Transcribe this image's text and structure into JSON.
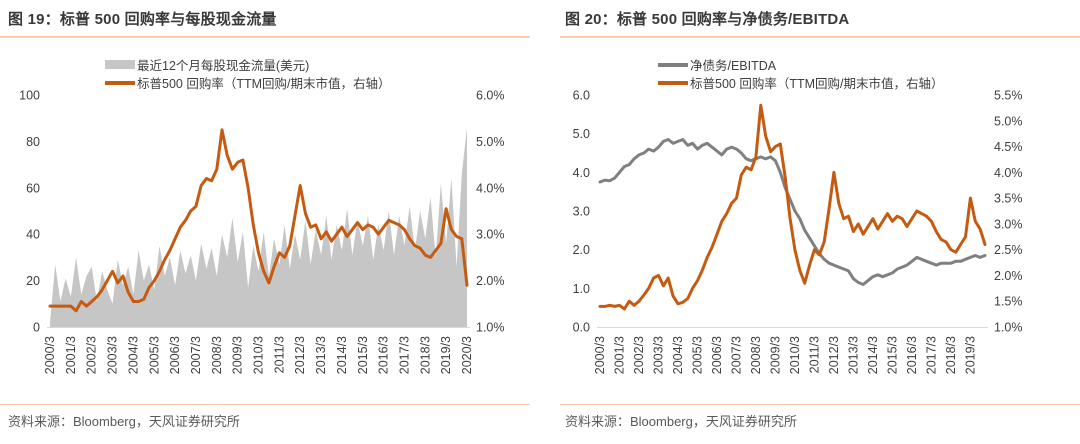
{
  "colors": {
    "accent_orange": "#C55A11",
    "area_gray": "#C6C6C6",
    "line_gray": "#808080",
    "rule_orange": "#F8CBAD",
    "title_text": "#3B3838",
    "tick_text": "#404040",
    "source_text": "#595959",
    "baseline": "#D9D9D9"
  },
  "panels": [
    {
      "title": "图 19：标普 500 回购率与每股现金流量",
      "source": "资料来源：Bloomberg，天风证券研究所",
      "legend": [
        {
          "type": "area",
          "label": "最近12个月每股现金流量(美元)",
          "color": "#C6C6C6"
        },
        {
          "type": "line",
          "label": "标普500 回购率（TTM回购/期末市值，右轴）",
          "color": "#C55A11"
        }
      ]
    },
    {
      "title": "图 20：标普 500 回购率与净债务/EBITDA",
      "source": "资料来源：Bloomberg，天风证券研究所",
      "legend": [
        {
          "type": "line",
          "label": "净债务/EBITDA",
          "color": "#808080"
        },
        {
          "type": "line",
          "label": "标普500 回购率（TTM回购/期末市值，右轴）",
          "color": "#C55A11"
        }
      ]
    }
  ],
  "chart_data": [
    {
      "type": "area",
      "subtype": "combo-area-line-dual-axis",
      "title": "图 19：标普 500 回购率与每股现金流量",
      "x_frequency": "quarterly",
      "x_start": "2000Q1",
      "x_end": "2020Q1",
      "grid": false,
      "legend_position": "top",
      "x_tick_labels": [
        "2000/3",
        "2001/3",
        "2002/3",
        "2003/3",
        "2004/3",
        "2005/3",
        "2006/3",
        "2007/3",
        "2008/3",
        "2009/3",
        "2010/3",
        "2011/3",
        "2012/3",
        "2013/3",
        "2014/3",
        "2015/3",
        "2016/3",
        "2017/3",
        "2018/3",
        "2019/3",
        "2020/3"
      ],
      "left_axis": {
        "range": [
          0,
          100
        ],
        "ticks": [
          0,
          20,
          40,
          60,
          80,
          100
        ],
        "tick_labels": [
          "0",
          "20",
          "40",
          "60",
          "80",
          "100"
        ]
      },
      "right_axis": {
        "range": [
          1.0,
          6.0
        ],
        "ticks": [
          1,
          2,
          3,
          4,
          5,
          6
        ],
        "tick_labels": [
          "1.0%",
          "2.0%",
          "3.0%",
          "4.0%",
          "5.0%",
          "6.0%"
        ]
      },
      "series": [
        {
          "name": "最近12个月每股现金流量(美元)",
          "type": "area",
          "axis": "left",
          "color": "#C6C6C6",
          "values": [
            2,
            27,
            11,
            21,
            13,
            30,
            14,
            22,
            26,
            11,
            24,
            16,
            10,
            29,
            18,
            26,
            14,
            33,
            20,
            27,
            16,
            35,
            22,
            30,
            18,
            33,
            23,
            31,
            20,
            36,
            25,
            34,
            22,
            40,
            30,
            47,
            28,
            41,
            17,
            35,
            24,
            41,
            22,
            38,
            27,
            44,
            25,
            40,
            29,
            46,
            27,
            42,
            31,
            48,
            29,
            44,
            33,
            51,
            31,
            46,
            35,
            48,
            29,
            44,
            33,
            50,
            31,
            48,
            35,
            52,
            33,
            50,
            38,
            56,
            30,
            62,
            36,
            64,
            26,
            66,
            86
          ]
        },
        {
          "name": "标普500 回购率（TTM回购/期末市值，右轴）",
          "type": "line",
          "axis": "right",
          "color": "#C55A11",
          "values": [
            1.45,
            1.45,
            1.45,
            1.45,
            1.45,
            1.35,
            1.55,
            1.45,
            1.55,
            1.65,
            1.8,
            2.0,
            2.2,
            1.95,
            2.1,
            1.75,
            1.55,
            1.55,
            1.6,
            1.85,
            2.0,
            2.2,
            2.45,
            2.65,
            2.9,
            3.15,
            3.3,
            3.5,
            3.6,
            4.05,
            4.2,
            4.15,
            4.4,
            5.25,
            4.7,
            4.4,
            4.55,
            4.6,
            4.0,
            3.2,
            2.6,
            2.2,
            1.95,
            2.3,
            2.6,
            2.5,
            2.75,
            3.4,
            4.05,
            3.45,
            3.15,
            3.2,
            2.9,
            3.05,
            2.85,
            3.0,
            3.15,
            2.95,
            3.1,
            3.25,
            3.1,
            3.2,
            3.15,
            3.0,
            3.15,
            3.3,
            3.25,
            3.2,
            3.1,
            2.9,
            2.75,
            2.7,
            2.55,
            2.5,
            2.65,
            2.8,
            3.55,
            3.1,
            2.95,
            2.9,
            1.9
          ]
        }
      ]
    },
    {
      "type": "line",
      "subtype": "dual-axis-two-lines",
      "title": "图 20：标普 500 回购率与净债务/EBITDA",
      "x_frequency": "quarterly",
      "x_start": "2000Q1",
      "x_end": "2019Q4",
      "grid": false,
      "legend_position": "top",
      "x_tick_labels": [
        "2000/3",
        "2001/3",
        "2002/3",
        "2003/3",
        "2004/3",
        "2005/3",
        "2006/3",
        "2007/3",
        "2008/3",
        "2009/3",
        "2010/3",
        "2011/3",
        "2012/3",
        "2013/3",
        "2014/3",
        "2015/3",
        "2016/3",
        "2017/3",
        "2018/3",
        "2019/3"
      ],
      "left_axis": {
        "range": [
          0,
          6
        ],
        "ticks": [
          0,
          1,
          2,
          3,
          4,
          5,
          6
        ],
        "tick_labels": [
          "0.0",
          "1.0",
          "2.0",
          "3.0",
          "4.0",
          "5.0",
          "6.0"
        ]
      },
      "right_axis": {
        "range": [
          1.0,
          5.5
        ],
        "ticks": [
          1.0,
          1.5,
          2.0,
          2.5,
          3.0,
          3.5,
          4.0,
          4.5,
          5.0,
          5.5
        ],
        "tick_labels": [
          "1.0%",
          "1.5%",
          "2.0%",
          "2.5%",
          "3.0%",
          "3.5%",
          "4.0%",
          "4.5%",
          "5.0%",
          "5.5%"
        ]
      },
      "series": [
        {
          "name": "净债务/EBITDA",
          "type": "line",
          "axis": "left",
          "color": "#808080",
          "values": [
            3.75,
            3.8,
            3.78,
            3.85,
            4.0,
            4.15,
            4.2,
            4.35,
            4.45,
            4.5,
            4.6,
            4.55,
            4.65,
            4.8,
            4.85,
            4.75,
            4.8,
            4.85,
            4.7,
            4.75,
            4.6,
            4.7,
            4.75,
            4.65,
            4.55,
            4.45,
            4.6,
            4.65,
            4.6,
            4.5,
            4.35,
            4.3,
            4.35,
            4.4,
            4.35,
            4.4,
            4.3,
            4.0,
            3.6,
            3.3,
            3.0,
            2.8,
            2.5,
            2.3,
            2.1,
            1.9,
            1.75,
            1.65,
            1.6,
            1.55,
            1.5,
            1.45,
            1.25,
            1.15,
            1.1,
            1.2,
            1.3,
            1.35,
            1.3,
            1.35,
            1.4,
            1.5,
            1.55,
            1.6,
            1.7,
            1.8,
            1.75,
            1.7,
            1.65,
            1.6,
            1.65,
            1.65,
            1.65,
            1.7,
            1.7,
            1.75,
            1.8,
            1.85,
            1.8,
            1.85
          ]
        },
        {
          "name": "标普500 回购率（TTM回购/期末市值，右轴）",
          "type": "line",
          "axis": "right",
          "color": "#C55A11",
          "values": [
            1.4,
            1.4,
            1.42,
            1.4,
            1.42,
            1.35,
            1.5,
            1.42,
            1.5,
            1.62,
            1.75,
            1.95,
            2.0,
            1.8,
            1.95,
            1.6,
            1.45,
            1.48,
            1.55,
            1.75,
            1.9,
            2.1,
            2.35,
            2.55,
            2.8,
            3.05,
            3.2,
            3.4,
            3.5,
            3.95,
            4.1,
            4.05,
            4.3,
            5.3,
            4.7,
            4.4,
            4.5,
            4.55,
            3.9,
            3.1,
            2.5,
            2.1,
            1.85,
            2.2,
            2.5,
            2.4,
            2.65,
            3.3,
            4.0,
            3.4,
            3.1,
            3.15,
            2.85,
            3.0,
            2.8,
            2.95,
            3.1,
            2.9,
            3.05,
            3.2,
            3.05,
            3.15,
            3.1,
            2.95,
            3.1,
            3.25,
            3.2,
            3.15,
            3.05,
            2.85,
            2.7,
            2.65,
            2.5,
            2.45,
            2.6,
            2.75,
            3.5,
            3.05,
            2.9,
            2.6
          ]
        }
      ]
    }
  ]
}
